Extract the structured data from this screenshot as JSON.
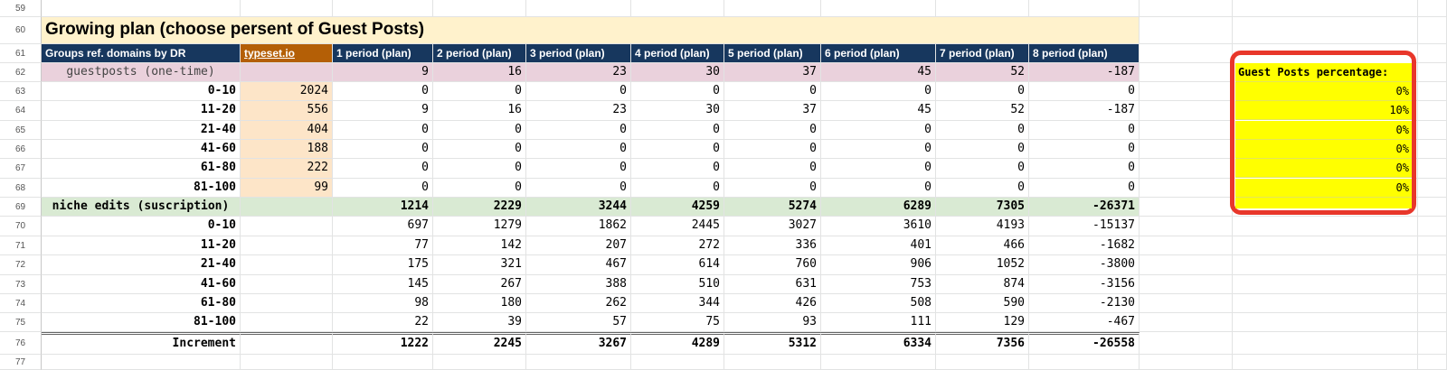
{
  "row_numbers": [
    "59",
    "60",
    "61",
    "62",
    "63",
    "64",
    "65",
    "66",
    "67",
    "68",
    "69",
    "70",
    "71",
    "72",
    "73",
    "74",
    "75",
    "76",
    "77"
  ],
  "title": "Growing plan (choose persent of Guest Posts)",
  "headers": {
    "group": "Groups ref. domains by DR",
    "source": "typeset.io",
    "periods": [
      "1 period (plan)",
      "2 period (plan)",
      "3 period (plan)",
      "4 period (plan)",
      "5 period (plan)",
      "6 period (plan)",
      "7 period (plan)",
      "8 period (plan)"
    ]
  },
  "guestposts": {
    "label": "guestposts (one-time)",
    "totals": [
      "9",
      "16",
      "23",
      "30",
      "37",
      "45",
      "52",
      "-187"
    ],
    "rows": [
      {
        "dr": "0-10",
        "source": "2024",
        "values": [
          "0",
          "0",
          "0",
          "0",
          "0",
          "0",
          "0",
          "0"
        ]
      },
      {
        "dr": "11-20",
        "source": "556",
        "values": [
          "9",
          "16",
          "23",
          "30",
          "37",
          "45",
          "52",
          "-187"
        ]
      },
      {
        "dr": "21-40",
        "source": "404",
        "values": [
          "0",
          "0",
          "0",
          "0",
          "0",
          "0",
          "0",
          "0"
        ]
      },
      {
        "dr": "41-60",
        "source": "188",
        "values": [
          "0",
          "0",
          "0",
          "0",
          "0",
          "0",
          "0",
          "0"
        ]
      },
      {
        "dr": "61-80",
        "source": "222",
        "values": [
          "0",
          "0",
          "0",
          "0",
          "0",
          "0",
          "0",
          "0"
        ]
      },
      {
        "dr": "81-100",
        "source": "99",
        "values": [
          "0",
          "0",
          "0",
          "0",
          "0",
          "0",
          "0",
          "0"
        ]
      }
    ]
  },
  "niche": {
    "label": "niche edits (suscription)",
    "totals": [
      "1214",
      "2229",
      "3244",
      "4259",
      "5274",
      "6289",
      "7305",
      "-26371"
    ],
    "rows": [
      {
        "dr": "0-10",
        "values": [
          "697",
          "1279",
          "1862",
          "2445",
          "3027",
          "3610",
          "4193",
          "-15137"
        ]
      },
      {
        "dr": "11-20",
        "values": [
          "77",
          "142",
          "207",
          "272",
          "336",
          "401",
          "466",
          "-1682"
        ]
      },
      {
        "dr": "21-40",
        "values": [
          "175",
          "321",
          "467",
          "614",
          "760",
          "906",
          "1052",
          "-3800"
        ]
      },
      {
        "dr": "41-60",
        "values": [
          "145",
          "267",
          "388",
          "510",
          "631",
          "753",
          "874",
          "-3156"
        ]
      },
      {
        "dr": "61-80",
        "values": [
          "98",
          "180",
          "262",
          "344",
          "426",
          "508",
          "590",
          "-2130"
        ]
      },
      {
        "dr": "81-100",
        "values": [
          "22",
          "39",
          "57",
          "75",
          "93",
          "111",
          "129",
          "-467"
        ]
      }
    ]
  },
  "increment": {
    "label": "Increment",
    "values": [
      "1222",
      "2245",
      "3267",
      "4289",
      "5312",
      "6334",
      "7356",
      "-26558"
    ]
  },
  "guest_posts_percentage": {
    "label": "Guest Posts percentage:",
    "values": [
      "0%",
      "10%",
      "0%",
      "0%",
      "0%",
      "0%"
    ]
  },
  "colors": {
    "header_bg": "#17375e",
    "source_header_bg": "#b45f06",
    "title_bg": "#fff2cc",
    "guestposts_bg": "#ead1dc",
    "niche_bg": "#d9ead3",
    "source_col_bg": "#fde5c8",
    "percentage_bg": "#ffff00",
    "highlight_border": "#e8372b"
  }
}
